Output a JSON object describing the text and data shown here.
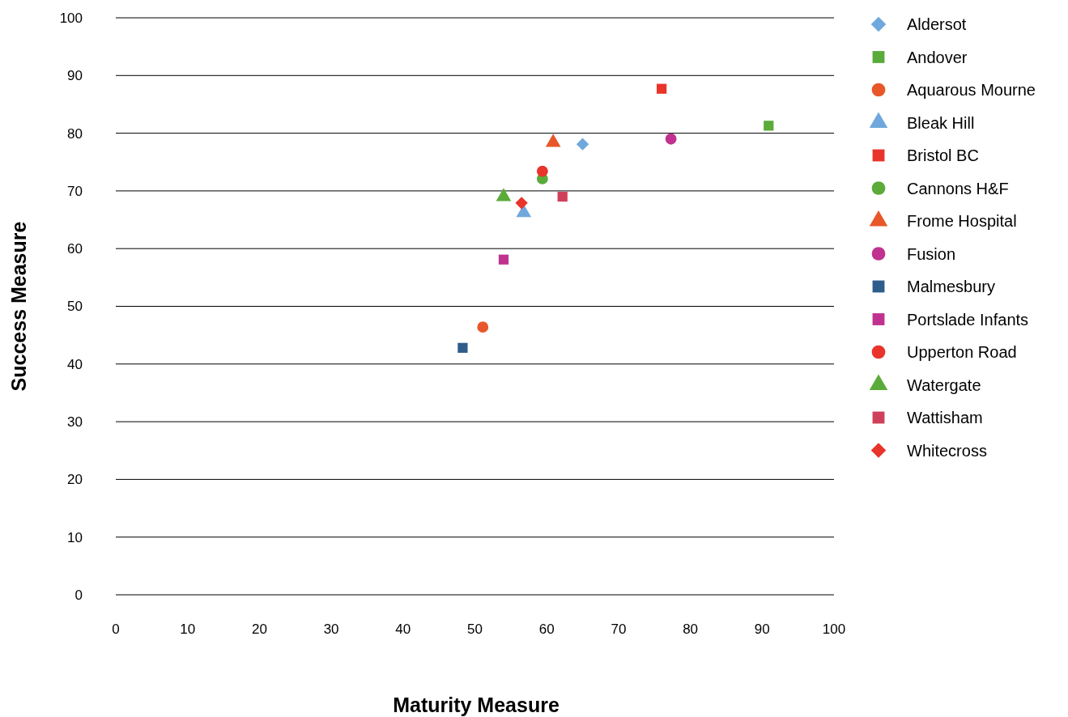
{
  "chart_data": {
    "type": "scatter",
    "xlabel": "Maturity Measure",
    "ylabel": "Success Measure",
    "xlim": [
      0,
      100
    ],
    "ylim": [
      0,
      100
    ],
    "xticks": [
      0,
      10,
      20,
      30,
      40,
      50,
      60,
      70,
      80,
      90,
      100
    ],
    "yticks": [
      0,
      10,
      20,
      30,
      40,
      50,
      60,
      70,
      80,
      90,
      100
    ],
    "grid": "y",
    "legend": "right",
    "series": [
      {
        "name": "Aldersot",
        "color": "#6fa8dc",
        "marker": "diamond",
        "x": [
          65.0
        ],
        "values": [
          78.1
        ]
      },
      {
        "name": "Andover",
        "color": "#5aab3a",
        "marker": "square",
        "x": [
          90.9
        ],
        "values": [
          81.3
        ]
      },
      {
        "name": "Aquarous Mourne",
        "color": "#e8572a",
        "marker": "circle",
        "x": [
          51.1
        ],
        "values": [
          46.4
        ]
      },
      {
        "name": "Bleak Hill",
        "color": "#6fa8dc",
        "marker": "triangle",
        "x": [
          56.8
        ],
        "values": [
          66.2
        ]
      },
      {
        "name": "Bristol BC",
        "color": "#e8342a",
        "marker": "square",
        "x": [
          76.0
        ],
        "values": [
          87.7
        ]
      },
      {
        "name": "Cannons H&F",
        "color": "#5aab3a",
        "marker": "circle",
        "x": [
          59.4
        ],
        "values": [
          72.1
        ]
      },
      {
        "name": "Frome Hospital",
        "color": "#e8572a",
        "marker": "triangle",
        "x": [
          60.9
        ],
        "values": [
          78.4
        ]
      },
      {
        "name": "Fusion",
        "color": "#c0328f",
        "marker": "circle",
        "x": [
          77.3
        ],
        "values": [
          79.0
        ]
      },
      {
        "name": "Malmesbury",
        "color": "#2e5d8c",
        "marker": "square",
        "x": [
          48.3
        ],
        "values": [
          42.8
        ]
      },
      {
        "name": "Portslade Infants",
        "color": "#c0328f",
        "marker": "square",
        "x": [
          54.0
        ],
        "values": [
          58.1
        ]
      },
      {
        "name": "Upperton Road",
        "color": "#e8342a",
        "marker": "circle",
        "x": [
          59.4
        ],
        "values": [
          73.4
        ]
      },
      {
        "name": "Watergate",
        "color": "#5aab3a",
        "marker": "triangle",
        "x": [
          54.0
        ],
        "values": [
          69.0
        ]
      },
      {
        "name": "Wattisham",
        "color": "#d0405a",
        "marker": "square",
        "x": [
          62.2
        ],
        "values": [
          69.0
        ]
      },
      {
        "name": "Whitecross",
        "color": "#e8342a",
        "marker": "diamond",
        "x": [
          56.5
        ],
        "values": [
          67.9
        ]
      }
    ]
  }
}
